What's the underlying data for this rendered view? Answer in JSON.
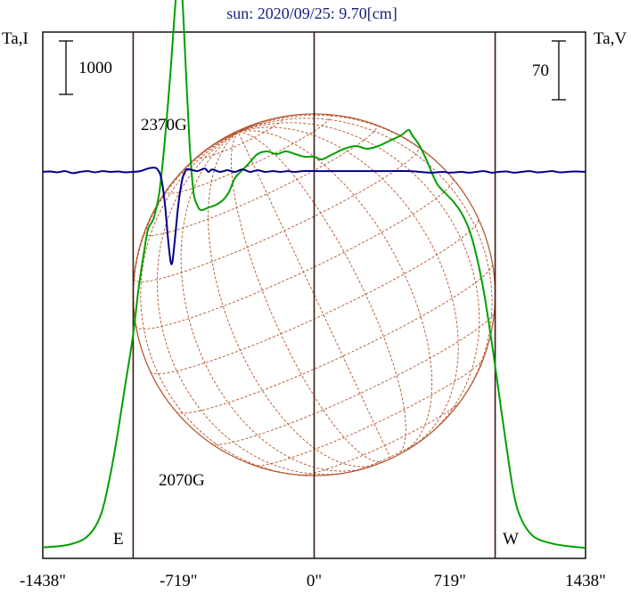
{
  "header": {
    "title": "sun: 2020/09/25: 9.70[cm]"
  },
  "axes": {
    "left_axis_label": "Ta,I",
    "right_axis_label": "Ta,V",
    "left_scale_label": "1000",
    "right_scale_label": "70",
    "x_ticks": [
      "-1438\"",
      "-719\"",
      "0\"",
      "719\"",
      "1438\""
    ],
    "x_tick_values": [
      -1438,
      -719,
      0,
      719,
      1438
    ],
    "disk_edge_labels": {
      "east": "E",
      "west": "W"
    }
  },
  "annotations": {
    "peak_label": "2370G",
    "dip_label": "2070G"
  },
  "colors": {
    "intensity": "#00a000",
    "polarization": "#00008b",
    "grid_disk": "#b5532a",
    "title": "#1a237e",
    "frame": "#000000",
    "limb_lines": "#3a1a12"
  },
  "chart_data": {
    "type": "line",
    "title": "sun: 2020/09/25: 9.70[cm]",
    "xlabel": "",
    "ylabel_left": "Ta,I",
    "ylabel_right": "Ta,V",
    "xlim": [
      -1438,
      1438
    ],
    "x_ticks": [
      -1438,
      -719,
      0,
      719,
      1438
    ],
    "limb_positions": [
      -959,
      0,
      959
    ],
    "scale_bars": {
      "left": 1000,
      "right": 70
    },
    "grid": false,
    "series": [
      {
        "values_from": "intensity_points"
      },
      {
        "values_from": "polarization_points"
      }
    ],
    "intensity_points": [
      [
        -1438,
        40
      ],
      [
        -1300,
        90
      ],
      [
        -1200,
        250
      ],
      [
        -1130,
        650
      ],
      [
        -1080,
        1400
      ],
      [
        -1040,
        2200
      ],
      [
        -1000,
        3100
      ],
      [
        -960,
        4000
      ],
      [
        -930,
        4900
      ],
      [
        -900,
        5600
      ],
      [
        -880,
        6000
      ],
      [
        -850,
        6200
      ],
      [
        -820,
        6700
      ],
      [
        -790,
        7700
      ],
      [
        -760,
        9000
      ],
      [
        -740,
        10000
      ],
      [
        -725,
        10600
      ],
      [
        -715,
        10700
      ],
      [
        -700,
        10400
      ],
      [
        -680,
        9000
      ],
      [
        -660,
        7600
      ],
      [
        -640,
        6700
      ],
      [
        -620,
        6450
      ],
      [
        -600,
        6350
      ],
      [
        -560,
        6400
      ],
      [
        -520,
        6450
      ],
      [
        -480,
        6550
      ],
      [
        -450,
        6700
      ],
      [
        -420,
        6950
      ],
      [
        -380,
        7100
      ],
      [
        -340,
        7250
      ],
      [
        -300,
        7400
      ],
      [
        -250,
        7450
      ],
      [
        -200,
        7400
      ],
      [
        -150,
        7450
      ],
      [
        -100,
        7400
      ],
      [
        -50,
        7350
      ],
      [
        0,
        7350
      ],
      [
        40,
        7300
      ],
      [
        100,
        7400
      ],
      [
        160,
        7500
      ],
      [
        220,
        7550
      ],
      [
        280,
        7500
      ],
      [
        340,
        7550
      ],
      [
        400,
        7650
      ],
      [
        460,
        7750
      ],
      [
        500,
        7850
      ],
      [
        520,
        7750
      ],
      [
        560,
        7550
      ],
      [
        600,
        7250
      ],
      [
        650,
        6850
      ],
      [
        700,
        6650
      ],
      [
        740,
        6500
      ],
      [
        780,
        6300
      ],
      [
        820,
        6000
      ],
      [
        860,
        5500
      ],
      [
        900,
        4800
      ],
      [
        940,
        3900
      ],
      [
        980,
        2900
      ],
      [
        1020,
        1900
      ],
      [
        1060,
        1000
      ],
      [
        1100,
        550
      ],
      [
        1160,
        250
      ],
      [
        1250,
        120
      ],
      [
        1350,
        60
      ],
      [
        1438,
        30
      ]
    ],
    "polarization_points": [
      [
        -1438,
        0
      ],
      [
        -1400,
        0.5
      ],
      [
        -1360,
        -0.5
      ],
      [
        -1320,
        1
      ],
      [
        -1280,
        -1.5
      ],
      [
        -1240,
        0
      ],
      [
        -1200,
        1
      ],
      [
        -1160,
        -0.5
      ],
      [
        -1120,
        1
      ],
      [
        -1080,
        0
      ],
      [
        -1040,
        0.5
      ],
      [
        -1000,
        -0.5
      ],
      [
        -960,
        0
      ],
      [
        -920,
        1
      ],
      [
        -880,
        4
      ],
      [
        -850,
        5
      ],
      [
        -830,
        3
      ],
      [
        -810,
        -8
      ],
      [
        -790,
        -40
      ],
      [
        -770,
        -90
      ],
      [
        -755,
        -110
      ],
      [
        -740,
        -85
      ],
      [
        -720,
        -40
      ],
      [
        -700,
        -10
      ],
      [
        -680,
        2
      ],
      [
        -660,
        3
      ],
      [
        -620,
        1
      ],
      [
        -580,
        4
      ],
      [
        -560,
        0
      ],
      [
        -540,
        3
      ],
      [
        -500,
        0
      ],
      [
        -460,
        2
      ],
      [
        -420,
        0
      ],
      [
        -380,
        3
      ],
      [
        -340,
        0
      ],
      [
        -300,
        2
      ],
      [
        -260,
        0
      ],
      [
        -220,
        1
      ],
      [
        -180,
        0
      ],
      [
        -140,
        1
      ],
      [
        -100,
        0
      ],
      [
        -60,
        1
      ],
      [
        0,
        1
      ],
      [
        100,
        1
      ],
      [
        200,
        1
      ],
      [
        300,
        1
      ],
      [
        400,
        1
      ],
      [
        500,
        1
      ],
      [
        560,
        0
      ],
      [
        620,
        -1
      ],
      [
        680,
        0
      ],
      [
        720,
        -1
      ],
      [
        780,
        0
      ],
      [
        820,
        -1
      ],
      [
        860,
        0
      ],
      [
        900,
        1
      ],
      [
        940,
        -1
      ],
      [
        980,
        0
      ],
      [
        1020,
        0.5
      ],
      [
        1060,
        -1
      ],
      [
        1100,
        0
      ],
      [
        1140,
        1
      ],
      [
        1180,
        -0.5
      ],
      [
        1220,
        0
      ],
      [
        1260,
        1
      ],
      [
        1300,
        -0.5
      ],
      [
        1340,
        0
      ],
      [
        1380,
        0.5
      ],
      [
        1438,
        0
      ]
    ]
  }
}
